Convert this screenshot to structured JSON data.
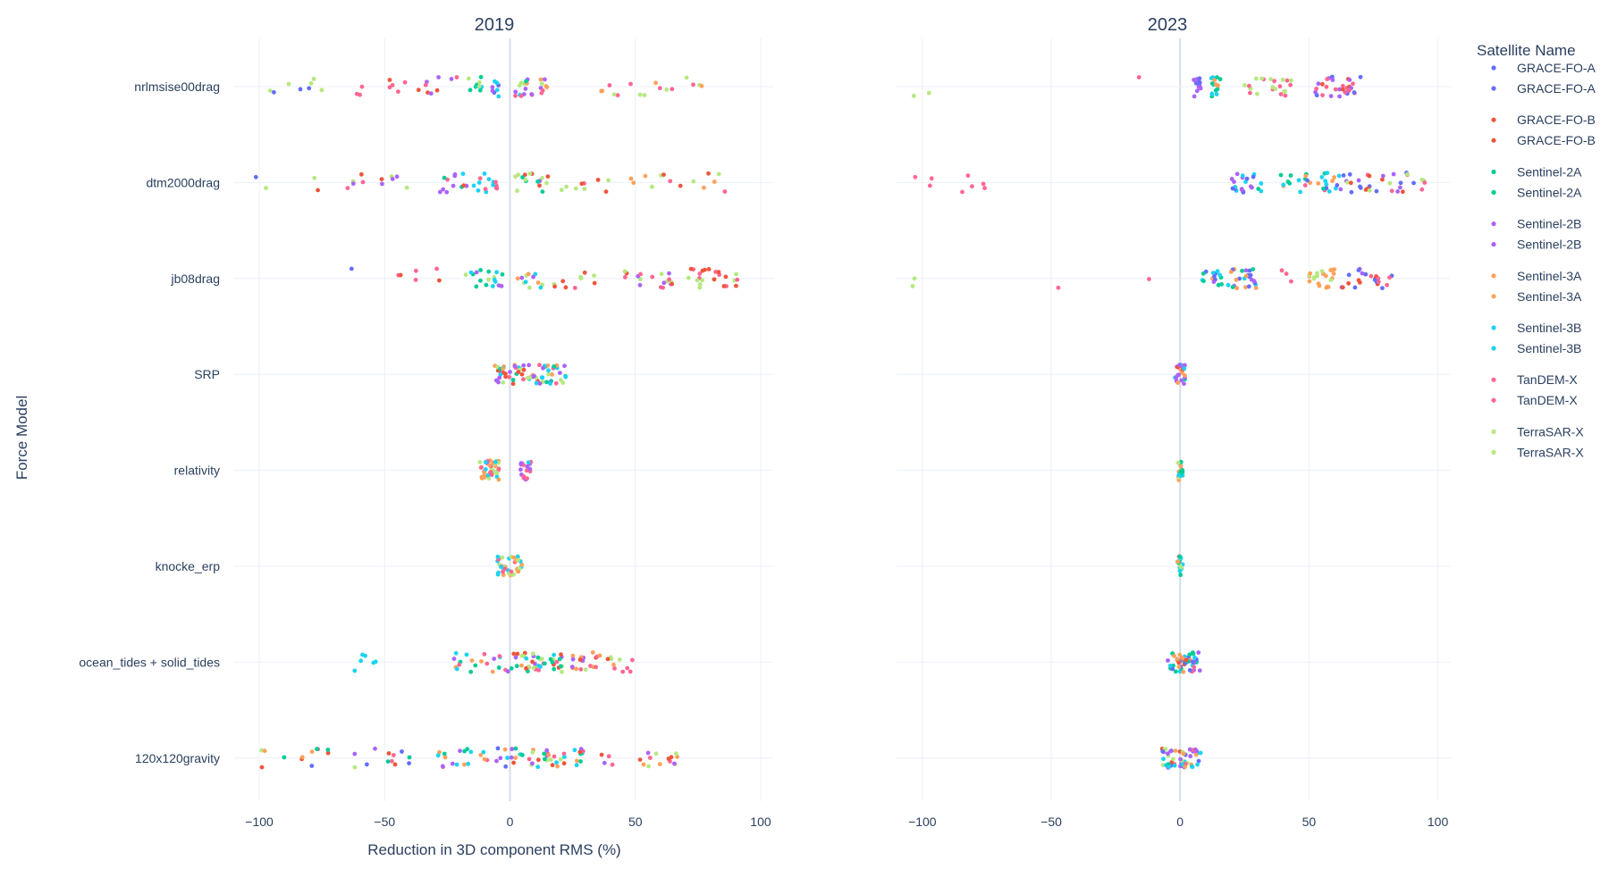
{
  "chart_data": {
    "type": "scatter",
    "subtype": "strip",
    "xlabel": "Reduction in 3D component RMS (%)",
    "ylabel": "Force Model",
    "categories": [
      "nrlmsise00drag",
      "dtm2000drag",
      "jb08drag",
      "SRP",
      "relativity",
      "knocke_erp",
      "ocean_tides + solid_tides",
      "120x120gravity"
    ],
    "xlim": [
      -110,
      105
    ],
    "xticks": [
      -100,
      -50,
      0,
      50,
      100
    ],
    "xtick_labels": [
      "−100",
      "−50",
      "0",
      "50",
      "100"
    ],
    "grid": true,
    "legend": {
      "title": "Satellite Name",
      "placement": "right",
      "entries": [
        {
          "label": "GRACE-FO-A",
          "color": "#636efa"
        },
        {
          "label": "GRACE-FO-A",
          "color": "#636efa"
        },
        {
          "label": "GRACE-FO-B",
          "color": "#ef553b"
        },
        {
          "label": "GRACE-FO-B",
          "color": "#ef553b"
        },
        {
          "label": "Sentinel-2A",
          "color": "#00cc96"
        },
        {
          "label": "Sentinel-2A",
          "color": "#00cc96"
        },
        {
          "label": "Sentinel-2B",
          "color": "#ab63fa"
        },
        {
          "label": "Sentinel-2B",
          "color": "#ab63fa"
        },
        {
          "label": "Sentinel-3A",
          "color": "#ffa15a"
        },
        {
          "label": "Sentinel-3A",
          "color": "#ffa15a"
        },
        {
          "label": "Sentinel-3B",
          "color": "#19d3f3"
        },
        {
          "label": "Sentinel-3B",
          "color": "#19d3f3"
        },
        {
          "label": "TanDEM-X",
          "color": "#ff6692"
        },
        {
          "label": "TanDEM-X",
          "color": "#ff6692"
        },
        {
          "label": "TerraSAR-X",
          "color": "#b6e880"
        },
        {
          "label": "TerraSAR-X",
          "color": "#b6e880"
        }
      ]
    },
    "satellites": [
      "GRACE-FO-A",
      "GRACE-FO-B",
      "Sentinel-2A",
      "Sentinel-2B",
      "Sentinel-3A",
      "Sentinel-3B",
      "TanDEM-X",
      "TerraSAR-X"
    ],
    "colors": [
      "#636efa",
      "#ef553b",
      "#00cc96",
      "#ab63fa",
      "#ffa15a",
      "#19d3f3",
      "#ff6692",
      "#b6e880"
    ],
    "panels": [
      {
        "title": "2019",
        "groups": [
          {
            "category": "nrlmsise00drag",
            "clusters": [
              {
                "min": -100,
                "max": -75,
                "n": 8,
                "sats": [
                  0,
                  1,
                  7
                ]
              },
              {
                "min": -66,
                "max": -44,
                "n": 7,
                "sats": [
                  1,
                  6,
                  3,
                  0
                ]
              },
              {
                "min": -42,
                "max": -20,
                "n": 10,
                "sats": [
                  1,
                  6,
                  3,
                  4
                ]
              },
              {
                "min": -17,
                "max": -11,
                "n": 10,
                "sats": [
                  5,
                  2,
                  7
                ]
              },
              {
                "min": -7,
                "max": -4,
                "n": 8,
                "sats": [
                  3,
                  0,
                  5
                ]
              },
              {
                "min": 0,
                "max": 18,
                "n": 22,
                "sats": [
                  3,
                  4,
                  5,
                  6,
                  7,
                  2
                ]
              },
              {
                "min": 20,
                "max": 77,
                "n": 16,
                "sats": [
                  7,
                  6,
                  4
                ]
              }
            ]
          },
          {
            "category": "dtm2000drag",
            "clusters": [
              {
                "min": -108,
                "max": -75,
                "n": 4,
                "sats": [
                  0,
                  1,
                  7
                ]
              },
              {
                "min": -66,
                "max": -36,
                "n": 11,
                "sats": [
                  1,
                  6,
                  3,
                  7
                ]
              },
              {
                "min": -28,
                "max": -5,
                "n": 26,
                "sats": [
                  3,
                  2,
                  5,
                  6,
                  1
                ]
              },
              {
                "min": 2,
                "max": 16,
                "n": 16,
                "sats": [
                  7,
                  2,
                  3,
                  1
                ]
              },
              {
                "min": 20,
                "max": 40,
                "n": 10,
                "sats": [
                  6,
                  7,
                  1
                ]
              },
              {
                "min": 48,
                "max": 90,
                "n": 14,
                "sats": [
                  6,
                  7,
                  1,
                  4
                ]
              }
            ]
          },
          {
            "category": "jb08drag",
            "clusters": [
              {
                "min": -66,
                "max": -63,
                "n": 1,
                "sats": [
                  0
                ]
              },
              {
                "min": -45,
                "max": -25,
                "n": 6,
                "sats": [
                  1,
                  6,
                  0
                ]
              },
              {
                "min": -18,
                "max": -3,
                "n": 18,
                "sats": [
                  5,
                  7,
                  3,
                  2
                ]
              },
              {
                "min": 3,
                "max": 13,
                "n": 12,
                "sats": [
                  5,
                  4,
                  3,
                  7
                ]
              },
              {
                "min": 15,
                "max": 36,
                "n": 10,
                "sats": [
                  6,
                  7,
                  1
                ]
              },
              {
                "min": 44,
                "max": 66,
                "n": 18,
                "sats": [
                  7,
                  3,
                  6,
                  1
                ]
              },
              {
                "min": 71,
                "max": 92,
                "n": 24,
                "sats": [
                  7,
                  6,
                  1
                ]
              }
            ]
          },
          {
            "category": "SRP",
            "clusters": [
              {
                "min": -6,
                "max": 23,
                "n": 70,
                "sats": [
                  4,
                  5,
                  6,
                  1,
                  3,
                  7,
                  2
                ]
              }
            ]
          },
          {
            "category": "relativity",
            "clusters": [
              {
                "min": -12,
                "max": -4,
                "n": 40,
                "sats": [
                  3,
                  4,
                  7,
                  5,
                  6
                ]
              },
              {
                "min": 4,
                "max": 9,
                "n": 18,
                "sats": [
                  5,
                  3,
                  6
                ]
              }
            ]
          },
          {
            "category": "knocke_erp",
            "clusters": [
              {
                "min": -5,
                "max": 5,
                "n": 40,
                "sats": [
                  7,
                  4,
                  5,
                  6
                ]
              }
            ]
          },
          {
            "category": "ocean_tides + solid_tides",
            "clusters": [
              {
                "min": -64,
                "max": -53,
                "n": 6,
                "sats": [
                  5
                ]
              },
              {
                "min": -25,
                "max": 0,
                "n": 20,
                "sats": [
                  4,
                  2,
                  6,
                  3,
                  5
                ]
              },
              {
                "min": 0,
                "max": 25,
                "n": 45,
                "sats": [
                  5,
                  4,
                  6,
                  3,
                  2,
                  1,
                  7
                ]
              },
              {
                "min": 25,
                "max": 50,
                "n": 26,
                "sats": [
                  4,
                  6,
                  7,
                  3,
                  1
                ]
              }
            ]
          },
          {
            "category": "120x120gravity",
            "clusters": [
              {
                "min": -104,
                "max": -68,
                "n": 12,
                "sats": [
                  4,
                  1,
                  6,
                  0,
                  7,
                  2
                ]
              },
              {
                "min": -65,
                "max": -40,
                "n": 12,
                "sats": [
                  1,
                  3,
                  0,
                  2,
                  7,
                  6
                ]
              },
              {
                "min": -30,
                "max": 0,
                "n": 24,
                "sats": [
                  3,
                  6,
                  2,
                  0,
                  4,
                  5
                ]
              },
              {
                "min": 0,
                "max": 30,
                "n": 40,
                "sats": [
                  5,
                  4,
                  3,
                  2,
                  6,
                  7,
                  1
                ]
              },
              {
                "min": 36,
                "max": 70,
                "n": 18,
                "sats": [
                  3,
                  6,
                  1,
                  4,
                  7
                ]
              }
            ]
          }
        ]
      },
      {
        "title": "2023",
        "groups": [
          {
            "category": "nrlmsise00drag",
            "clusters": [
              {
                "min": -108,
                "max": -94,
                "n": 2,
                "sats": [
                  7
                ]
              },
              {
                "min": -17,
                "max": -15,
                "n": 1,
                "sats": [
                  6
                ]
              },
              {
                "min": 5,
                "max": 8,
                "n": 14,
                "sats": [
                  3,
                  0
                ]
              },
              {
                "min": 12,
                "max": 16,
                "n": 14,
                "sats": [
                  5,
                  4,
                  2
                ]
              },
              {
                "min": 25,
                "max": 45,
                "n": 22,
                "sats": [
                  7,
                  6
                ]
              },
              {
                "min": 52,
                "max": 70,
                "n": 30,
                "sats": [
                  1,
                  6,
                  0,
                  3
                ]
              }
            ]
          },
          {
            "category": "dtm2000drag",
            "clusters": [
              {
                "min": -105,
                "max": -67,
                "n": 8,
                "sats": [
                  6
                ]
              },
              {
                "min": 20,
                "max": 32,
                "n": 22,
                "sats": [
                  3,
                  2,
                  0,
                  5
                ]
              },
              {
                "min": 38,
                "max": 62,
                "n": 30,
                "sats": [
                  5,
                  4,
                  6,
                  0,
                  2
                ]
              },
              {
                "min": 62,
                "max": 95,
                "n": 34,
                "sats": [
                  6,
                  1,
                  7,
                  3,
                  0
                ]
              }
            ]
          },
          {
            "category": "jb08drag",
            "clusters": [
              {
                "min": -108,
                "max": -102,
                "n": 2,
                "sats": [
                  7
                ]
              },
              {
                "min": -48,
                "max": -45,
                "n": 1,
                "sats": [
                  6
                ]
              },
              {
                "min": -13,
                "max": -11,
                "n": 1,
                "sats": [
                  6
                ]
              },
              {
                "min": 7,
                "max": 30,
                "n": 40,
                "sats": [
                  3,
                  5,
                  4,
                  2,
                  0
                ]
              },
              {
                "min": 35,
                "max": 45,
                "n": 3,
                "sats": [
                  6
                ]
              },
              {
                "min": 49,
                "max": 60,
                "n": 22,
                "sats": [
                  7,
                  4
                ]
              },
              {
                "min": 62,
                "max": 83,
                "n": 24,
                "sats": [
                  6,
                  1,
                  3,
                  0
                ]
              }
            ]
          },
          {
            "category": "SRP",
            "clusters": [
              {
                "min": -2,
                "max": 2,
                "n": 24,
                "sats": [
                  4,
                  5,
                  6,
                  1,
                  2,
                  3
                ]
              }
            ]
          },
          {
            "category": "relativity",
            "clusters": [
              {
                "min": -1,
                "max": 1,
                "n": 20,
                "sats": [
                  5,
                  7,
                  2,
                  4
                ]
              }
            ]
          },
          {
            "category": "knocke_erp",
            "clusters": [
              {
                "min": -1,
                "max": 1,
                "n": 20,
                "sats": [
                  5,
                  7,
                  2,
                  4,
                  6
                ]
              }
            ]
          },
          {
            "category": "ocean_tides + solid_tides",
            "clusters": [
              {
                "min": -5,
                "max": 8,
                "n": 50,
                "sats": [
                  5,
                  4,
                  6,
                  3,
                  2,
                  1,
                  0
                ]
              }
            ]
          },
          {
            "category": "120x120gravity",
            "clusters": [
              {
                "min": -7,
                "max": 8,
                "n": 55,
                "sats": [
                  4,
                  5,
                  3,
                  2,
                  6,
                  1,
                  0,
                  7
                ]
              }
            ]
          }
        ]
      }
    ]
  }
}
